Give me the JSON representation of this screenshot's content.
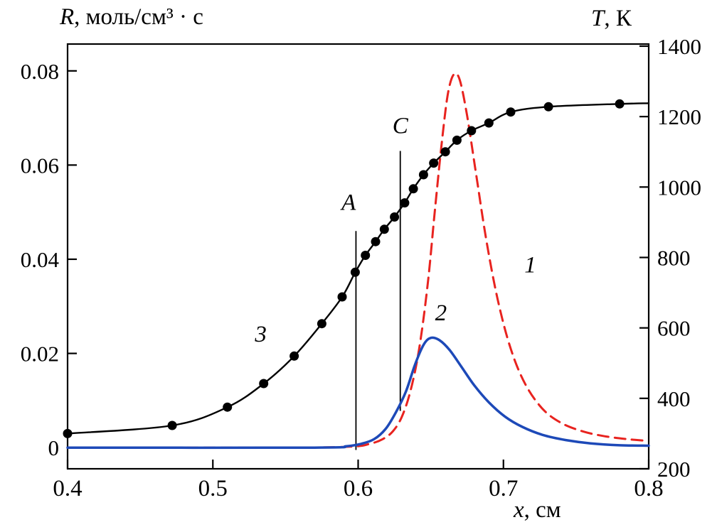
{
  "figure": {
    "left_axis_title": {
      "symbol": "R",
      "units": ", моль/см³ · с"
    },
    "right_axis_title": {
      "symbol": "T",
      "units": ", К"
    },
    "x_axis_title": {
      "symbol": "x",
      "units": ", см"
    }
  },
  "chart_data": {
    "type": "line",
    "title": "",
    "xlabel": "x, см",
    "ylabel_left": "R, моль/см³ · с",
    "ylabel_right": "T, К",
    "grid": false,
    "legend": "none",
    "x_axis": {
      "ticks": [
        "0.4",
        "0.5",
        "0.6",
        "0.7",
        "0.8"
      ],
      "plot_range": [
        0.4,
        0.8
      ]
    },
    "left_axis": {
      "ticks": [
        "0",
        "0.02",
        "0.04",
        "0.06",
        "0.08"
      ],
      "display_range": [
        0,
        0.08
      ],
      "plot_range": [
        -0.0045,
        0.0857
      ]
    },
    "right_axis": {
      "ticks": [
        "200",
        "400",
        "600",
        "800",
        "1000",
        "1200",
        "1400"
      ],
      "display_range": [
        200,
        1400
      ],
      "plot_range": [
        200,
        1406
      ]
    },
    "series": [
      {
        "name": "1",
        "axis": "left",
        "color": "#e8231f",
        "width": 3,
        "dash": "15 9",
        "markers": false,
        "x": [
          0.4,
          0.55,
          0.595,
          0.608,
          0.617,
          0.624,
          0.63,
          0.636,
          0.642,
          0.648,
          0.653,
          0.658,
          0.662,
          0.666,
          0.67,
          0.675,
          0.681,
          0.688,
          0.696,
          0.705,
          0.715,
          0.727,
          0.74,
          0.755,
          0.77,
          0.785,
          0.8
        ],
        "y": [
          0.0,
          0.0,
          0.0002,
          0.0008,
          0.0018,
          0.0035,
          0.0065,
          0.012,
          0.021,
          0.035,
          0.051,
          0.066,
          0.0755,
          0.0793,
          0.078,
          0.0705,
          0.0585,
          0.0445,
          0.0315,
          0.021,
          0.0135,
          0.0082,
          0.0052,
          0.0034,
          0.0024,
          0.0018,
          0.0014
        ]
      },
      {
        "name": "2",
        "axis": "left",
        "color": "#1d49b8",
        "width": 3.5,
        "dash": "",
        "markers": false,
        "x": [
          0.4,
          0.57,
          0.592,
          0.602,
          0.611,
          0.619,
          0.626,
          0.633,
          0.639,
          0.645,
          0.65,
          0.656,
          0.663,
          0.671,
          0.68,
          0.69,
          0.701,
          0.713,
          0.727,
          0.743,
          0.76,
          0.78,
          0.8
        ],
        "y": [
          0.0,
          0.0,
          0.0003,
          0.0008,
          0.0018,
          0.004,
          0.0075,
          0.012,
          0.0175,
          0.0218,
          0.0233,
          0.0228,
          0.0207,
          0.0172,
          0.0132,
          0.0096,
          0.0066,
          0.0044,
          0.0027,
          0.0016,
          0.0009,
          0.0005,
          0.0004
        ]
      },
      {
        "name": "3",
        "axis": "right",
        "color": "#000000",
        "width": 2.4,
        "dash": "",
        "markers": true,
        "marker_radius": 6.5,
        "skip_marker_last": true,
        "x": [
          0.4,
          0.472,
          0.51,
          0.535,
          0.556,
          0.575,
          0.589,
          0.598,
          0.605,
          0.612,
          0.618,
          0.625,
          0.632,
          0.638,
          0.645,
          0.652,
          0.66,
          0.668,
          0.678,
          0.69,
          0.705,
          0.731,
          0.78,
          0.8
        ],
        "y": [
          300,
          323,
          375,
          442,
          520,
          612,
          688,
          758,
          806,
          845,
          880,
          915,
          955,
          995,
          1035,
          1068,
          1100,
          1133,
          1160,
          1182,
          1213,
          1228,
          1236,
          1238
        ]
      }
    ],
    "annotations": {
      "vlines": [
        {
          "label": "A",
          "x": 0.5985,
          "y_from": -0.0005,
          "y_to": 0.046,
          "label_x": 0.5935,
          "label_y": 0.0505
        },
        {
          "label": "C",
          "x": 0.629,
          "y_from": 0.0078,
          "y_to": 0.063,
          "label_x": 0.629,
          "label_y": 0.0668
        }
      ],
      "curve_labels": [
        {
          "text": "1",
          "x": 0.7185,
          "y": 0.0372
        },
        {
          "text": "2",
          "x": 0.657,
          "y": 0.027
        },
        {
          "text": "3",
          "x": 0.533,
          "y": 0.0225
        }
      ]
    }
  }
}
